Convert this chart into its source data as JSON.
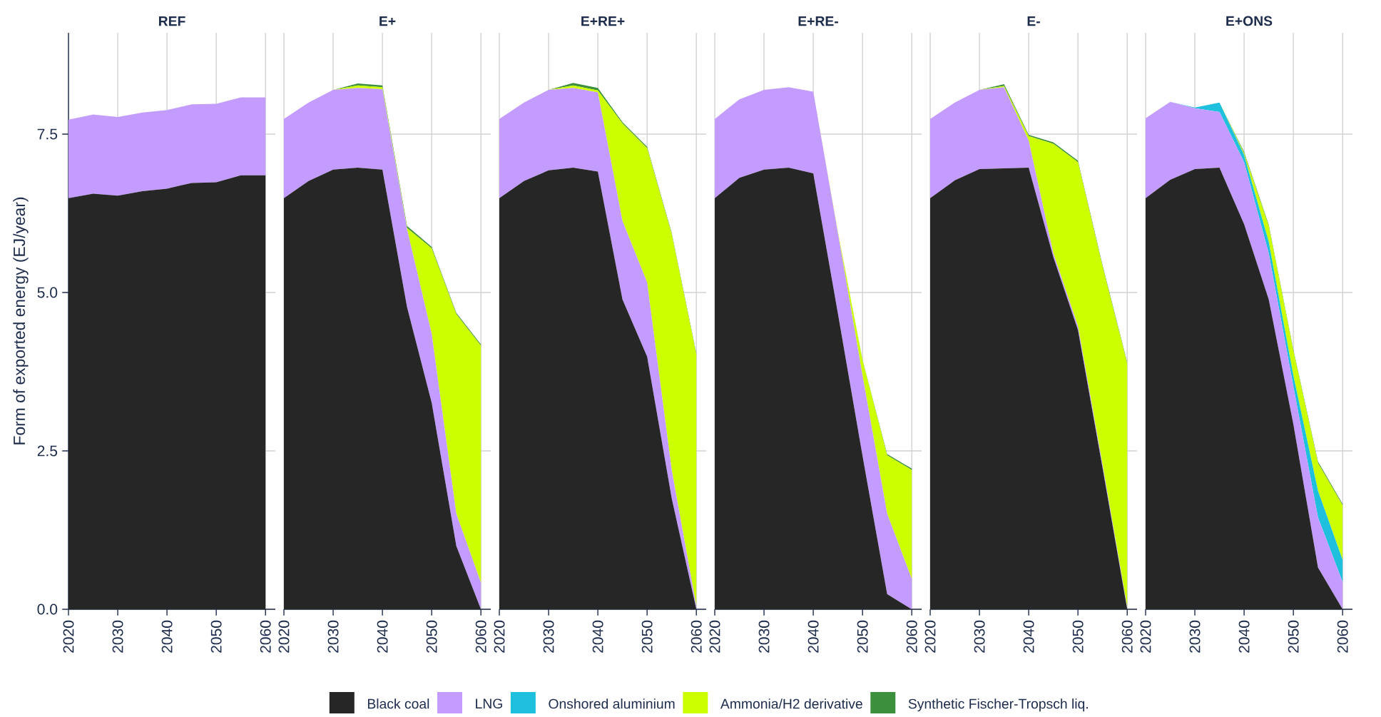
{
  "chart_data": [
    {
      "type": "area",
      "title": "REF",
      "ylabel": "Form of exported energy (EJ/year)",
      "stacked": true,
      "grid": true,
      "x": [
        2020,
        2025,
        2030,
        2035,
        2040,
        2045,
        2050,
        2055,
        2060
      ],
      "xlim": [
        2020,
        2062
      ],
      "xticks": [
        2020,
        2030,
        2040,
        2050,
        2060
      ],
      "ylim": [
        0,
        9.1
      ],
      "yticks": [
        {
          "value": 0,
          "label": "0.0"
        },
        {
          "value": 2.5,
          "label": "2.5"
        },
        {
          "value": 5,
          "label": "5.0"
        },
        {
          "value": 7.5,
          "label": "7.5"
        }
      ],
      "series": [
        {
          "color": "#262626",
          "values": [
            6.49,
            6.56,
            6.53,
            6.6,
            6.64,
            6.73,
            6.74,
            6.85,
            6.85
          ]
        },
        {
          "color": "#c49cff",
          "values": [
            1.24,
            1.25,
            1.24,
            1.24,
            1.24,
            1.24,
            1.24,
            1.23,
            1.23
          ]
        }
      ]
    },
    {
      "type": "area",
      "title": "E+",
      "stacked": true,
      "grid": true,
      "tick_labels": "x",
      "x": [
        2020,
        2025,
        2030,
        2035,
        2040,
        2045,
        2050,
        2055,
        2060
      ],
      "xlim": [
        2020,
        2062
      ],
      "xticks": [
        2020,
        2030,
        2040,
        2050,
        2060
      ],
      "ylim": [
        0,
        9.1
      ],
      "yticks": [
        {
          "value": 0,
          "label": null
        },
        {
          "value": 2.5,
          "label": null
        },
        {
          "value": 5,
          "label": null
        },
        {
          "value": 7.5,
          "label": null
        }
      ],
      "series": [
        {
          "color": "#262626",
          "values": [
            6.49,
            6.76,
            6.94,
            6.97,
            6.94,
            4.77,
            3.26,
            1.0,
            0
          ]
        },
        {
          "color": "#c49cff",
          "values": [
            1.25,
            1.24,
            1.26,
            1.26,
            1.27,
            1.23,
            1.09,
            0.51,
            0.42
          ]
        },
        {
          "color": "#ccff00",
          "values": [
            0,
            0,
            0,
            0.04,
            0.03,
            0.02,
            1.35,
            3.15,
            3.74
          ]
        },
        {
          "color": "#3c8f3c",
          "values": [
            0,
            0,
            0,
            0.03,
            0.03,
            0.03,
            0.02,
            0.02,
            0.02
          ]
        }
      ]
    },
    {
      "type": "area",
      "title": "E+RE+",
      "stacked": true,
      "grid": true,
      "tick_labels": "x",
      "x": [
        2020,
        2025,
        2030,
        2035,
        2040,
        2045,
        2050,
        2055,
        2060
      ],
      "xlim": [
        2020,
        2062
      ],
      "xticks": [
        2020,
        2030,
        2040,
        2050,
        2060
      ],
      "ylim": [
        0,
        9.1
      ],
      "yticks": [
        {
          "value": 0,
          "label": null
        },
        {
          "value": 2.5,
          "label": null
        },
        {
          "value": 5,
          "label": null
        },
        {
          "value": 7.5,
          "label": null
        }
      ],
      "series": [
        {
          "color": "#262626",
          "values": [
            6.49,
            6.76,
            6.93,
            6.97,
            6.91,
            4.89,
            3.99,
            1.75,
            0
          ]
        },
        {
          "color": "#c49cff",
          "values": [
            1.25,
            1.24,
            1.27,
            1.26,
            1.25,
            1.24,
            1.17,
            0.45,
            0.05
          ]
        },
        {
          "color": "#ccff00",
          "values": [
            0,
            0,
            0,
            0.04,
            0.03,
            1.54,
            2.12,
            3.72,
            3.97
          ]
        },
        {
          "color": "#3c8f3c",
          "values": [
            0,
            0,
            0,
            0.04,
            0.04,
            0.02,
            0.02,
            0.02,
            0.02
          ]
        }
      ]
    },
    {
      "type": "area",
      "title": "E+RE-",
      "stacked": true,
      "grid": true,
      "tick_labels": "x",
      "x": [
        2020,
        2025,
        2030,
        2035,
        2040,
        2045,
        2050,
        2055,
        2060
      ],
      "xlim": [
        2020,
        2062
      ],
      "xticks": [
        2020,
        2030,
        2040,
        2050,
        2060
      ],
      "ylim": [
        0,
        9.1
      ],
      "yticks": [
        {
          "value": 0,
          "label": null
        },
        {
          "value": 2.5,
          "label": null
        },
        {
          "value": 5,
          "label": null
        },
        {
          "value": 7.5,
          "label": null
        }
      ],
      "series": [
        {
          "color": "#262626",
          "values": [
            6.49,
            6.81,
            6.94,
            6.97,
            6.88,
            4.67,
            2.42,
            0.24,
            0
          ]
        },
        {
          "color": "#c49cff",
          "values": [
            1.25,
            1.24,
            1.26,
            1.27,
            1.29,
            1.27,
            1.27,
            1.27,
            0.48
          ]
        },
        {
          "color": "#ccff00",
          "values": [
            0,
            0,
            0,
            0,
            0,
            0.02,
            0.24,
            0.92,
            1.72
          ]
        },
        {
          "color": "#3c8f3c",
          "values": [
            0,
            0,
            0,
            0,
            0,
            0,
            0.01,
            0.02,
            0.02
          ]
        }
      ]
    },
    {
      "type": "area",
      "title": "E-",
      "stacked": true,
      "grid": true,
      "tick_labels": "x",
      "x": [
        2020,
        2025,
        2030,
        2035,
        2040,
        2045,
        2050,
        2055,
        2060
      ],
      "xlim": [
        2020,
        2062
      ],
      "xticks": [
        2020,
        2030,
        2040,
        2050,
        2060
      ],
      "ylim": [
        0,
        9.1
      ],
      "yticks": [
        {
          "value": 0,
          "label": null
        },
        {
          "value": 2.5,
          "label": null
        },
        {
          "value": 5,
          "label": null
        },
        {
          "value": 7.5,
          "label": null
        }
      ],
      "series": [
        {
          "color": "#262626",
          "values": [
            6.49,
            6.77,
            6.95,
            6.96,
            6.97,
            5.56,
            4.41,
            2.23,
            0
          ]
        },
        {
          "color": "#c49cff",
          "values": [
            1.25,
            1.23,
            1.25,
            1.28,
            0.43,
            0.06,
            0.06,
            0.05,
            0.03
          ]
        },
        {
          "color": "#ccff00",
          "values": [
            0,
            0,
            0,
            0.02,
            0.07,
            1.73,
            2.59,
            3.13,
            3.85
          ]
        },
        {
          "color": "#3c8f3c",
          "values": [
            0,
            0,
            0,
            0.03,
            0.02,
            0.02,
            0.02,
            0.02,
            0.02
          ]
        }
      ]
    },
    {
      "type": "area",
      "title": "E+ONS",
      "stacked": true,
      "grid": true,
      "tick_labels": "x",
      "legend": "bottom",
      "x": [
        2020,
        2025,
        2030,
        2035,
        2040,
        2045,
        2050,
        2055,
        2060
      ],
      "xlim": [
        2020,
        2062
      ],
      "xticks": [
        2020,
        2030,
        2040,
        2050,
        2060
      ],
      "ylim": [
        0,
        9.1
      ],
      "yticks": [
        {
          "value": 0,
          "label": null
        },
        {
          "value": 2.5,
          "label": null
        },
        {
          "value": 5,
          "label": null
        },
        {
          "value": 7.5,
          "label": null
        }
      ],
      "series": [
        {
          "name": "Black coal",
          "color": "#262626",
          "values": [
            6.49,
            6.78,
            6.95,
            6.97,
            6.08,
            4.89,
            2.92,
            0.66,
            0
          ]
        },
        {
          "name": "LNG",
          "color": "#c49cff",
          "values": [
            1.26,
            1.23,
            0.96,
            0.88,
            0.98,
            0.73,
            0.6,
            0.79,
            0.43
          ]
        },
        {
          "name": "Onshored aluminium",
          "color": "#1fc0de",
          "values": [
            0,
            0,
            0.01,
            0.15,
            0.11,
            0.18,
            0.17,
            0.42,
            0.35
          ]
        },
        {
          "name": "Ammonia/H2 derivative",
          "color": "#ccff00",
          "values": [
            0,
            0,
            0,
            0,
            0.03,
            0.25,
            0.39,
            0.44,
            0.86
          ]
        },
        {
          "name": "Synthetic Fischer-Tropsch liq.",
          "color": "#3c8f3c",
          "values": [
            0,
            0,
            0,
            0,
            0.02,
            0.02,
            0.02,
            0.02,
            0.02
          ]
        }
      ]
    }
  ]
}
